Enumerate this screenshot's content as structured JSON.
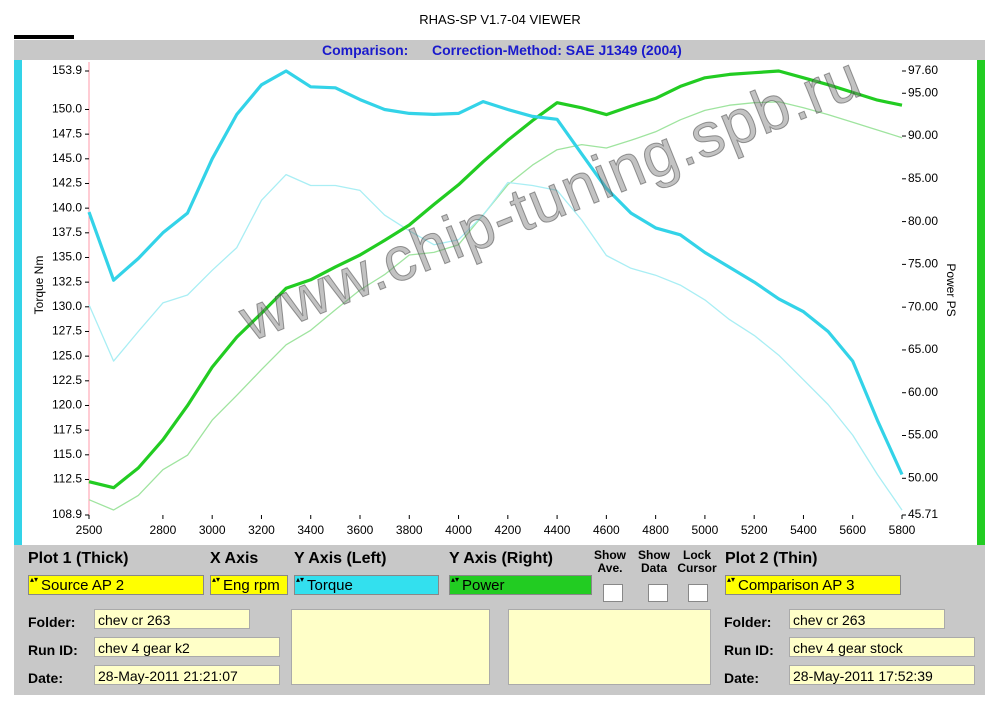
{
  "window_title": "RHAS-SP V1.7-04  VIEWER",
  "header": {
    "label": "Comparison:",
    "method": "Correction-Method: SAE J1349 (2004)"
  },
  "watermark": "www.chip-tuning.spb.ru",
  "chart_data": {
    "type": "line",
    "ylabel": "Torque Nm",
    "y2label": "Power PS",
    "x": [
      2500,
      2600,
      2700,
      2800,
      2900,
      3000,
      3100,
      3200,
      3300,
      3400,
      3500,
      3600,
      3700,
      3800,
      3900,
      4000,
      4100,
      4200,
      4300,
      4400,
      4500,
      4600,
      4700,
      4800,
      4900,
      5000,
      5100,
      5200,
      5300,
      5400,
      5500,
      5600,
      5700,
      5800
    ],
    "xlim": [
      2500,
      5800
    ],
    "xticks": [
      2500,
      2800,
      3000,
      3200,
      3400,
      3600,
      3800,
      4000,
      4200,
      4400,
      4600,
      4800,
      5000,
      5200,
      5400,
      5600,
      5800
    ],
    "ylim": [
      108.9,
      153.9
    ],
    "yticks": [
      108.9,
      112.5,
      {
        "value": 115,
        "label": "115.0"
      },
      117.5,
      {
        "value": 120,
        "label": "120.0"
      },
      122.5,
      {
        "value": 125,
        "label": "125.0"
      },
      127.5,
      {
        "value": 130,
        "label": "130.0"
      },
      132.5,
      {
        "value": 135,
        "label": "135.0"
      },
      137.5,
      {
        "value": 140,
        "label": "140.0"
      },
      142.5,
      {
        "value": 145,
        "label": "145.0"
      },
      147.5,
      {
        "value": 150,
        "label": "150.0"
      },
      153.9
    ],
    "y2lim": [
      45.71,
      97.6
    ],
    "y2ticks": [
      45.71,
      {
        "value": 50,
        "label": "50.00"
      },
      {
        "value": 55,
        "label": "55.00"
      },
      {
        "value": 60,
        "label": "60.00"
      },
      {
        "value": 65,
        "label": "65.00"
      },
      {
        "value": 70,
        "label": "70.00"
      },
      {
        "value": 75,
        "label": "75.00"
      },
      {
        "value": 80,
        "label": "80.00"
      },
      {
        "value": 85,
        "label": "85.00"
      },
      {
        "value": 90,
        "label": "90.00"
      },
      {
        "value": 95,
        "label": "95.00"
      },
      {
        "value": 97.6,
        "label": "97.60"
      }
    ],
    "series": [
      {
        "color": "#33d3e8",
        "values": [
          139.6,
          132.7,
          134.9,
          137.5,
          139.5,
          145.0,
          149.5,
          152.5,
          153.9,
          152.3,
          152.2,
          151.0,
          150.0,
          149.6,
          149.5,
          149.6,
          150.8,
          150.0,
          149.3,
          149.0,
          145.5,
          142.0,
          139.5,
          138.0,
          137.3,
          135.5,
          134.0,
          132.5,
          130.8,
          129.5,
          127.5,
          124.5,
          118.5,
          113.0
        ]
      },
      {
        "color": "#22cc22",
        "axis": "y2",
        "values": [
          49.6,
          48.9,
          51.2,
          54.5,
          58.5,
          63.0,
          66.5,
          69.3,
          72.2,
          73.2,
          74.7,
          76.1,
          77.8,
          79.6,
          82.0,
          84.3,
          87.0,
          89.5,
          91.8,
          93.9,
          93.3,
          92.5,
          93.5,
          94.4,
          95.8,
          96.8,
          97.2,
          97.4,
          97.6,
          96.8,
          96.0,
          95.1,
          94.2,
          93.6
        ]
      },
      {
        "color": "#a9eef4",
        "values": [
          130.2,
          124.5,
          127.5,
          130.4,
          131.2,
          133.7,
          136.0,
          140.8,
          143.4,
          142.3,
          142.3,
          141.8,
          139.3,
          137.7,
          136.3,
          136.8,
          139.3,
          142.6,
          142.3,
          141.8,
          138.8,
          135.2,
          133.9,
          133.2,
          132.2,
          130.7,
          128.7,
          127.1,
          125.1,
          122.6,
          120.1,
          117.0,
          113.0,
          109.4
        ]
      },
      {
        "color": "#9fe49f",
        "axis": "y2",
        "values": [
          47.5,
          46.3,
          48.0,
          51.0,
          52.7,
          56.8,
          59.7,
          62.7,
          65.6,
          67.3,
          69.7,
          72.0,
          73.8,
          76.1,
          76.4,
          77.3,
          80.8,
          84.3,
          86.6,
          88.4,
          89.0,
          88.6,
          89.5,
          90.5,
          91.9,
          93.0,
          93.6,
          93.9,
          94.0,
          93.3,
          92.5,
          91.6,
          90.7,
          89.8
        ]
      }
    ]
  },
  "controls": {
    "plot1": "Plot 1 (Thick)",
    "xaxis": "X Axis",
    "yleft": "Y Axis (Left)",
    "yright": "Y Axis (Right)",
    "show_ave": "Show Ave.",
    "show_data": "Show Data",
    "lock_cursor": "Lock Cursor",
    "plot2": "Plot 2 (Thin)",
    "source": "Source AP 2",
    "xsel": "Eng rpm",
    "ysel_left": "Torque",
    "ysel_right": "Power",
    "comparison": "Comparison AP 3"
  },
  "plot1_info": {
    "folder_label": "Folder:",
    "folder": "chev cr 263",
    "run_label": "Run ID:",
    "run": "chev 4 gear k2",
    "date_label": "Date:",
    "date": "28-May-2011  21:21:07"
  },
  "plot2_info": {
    "folder_label": "Folder:",
    "folder": "chev cr 263",
    "run_label": "Run ID:",
    "run": "chev 4 gear stock",
    "date_label": "Date:",
    "date": "28-May-2011  17:52:39"
  }
}
